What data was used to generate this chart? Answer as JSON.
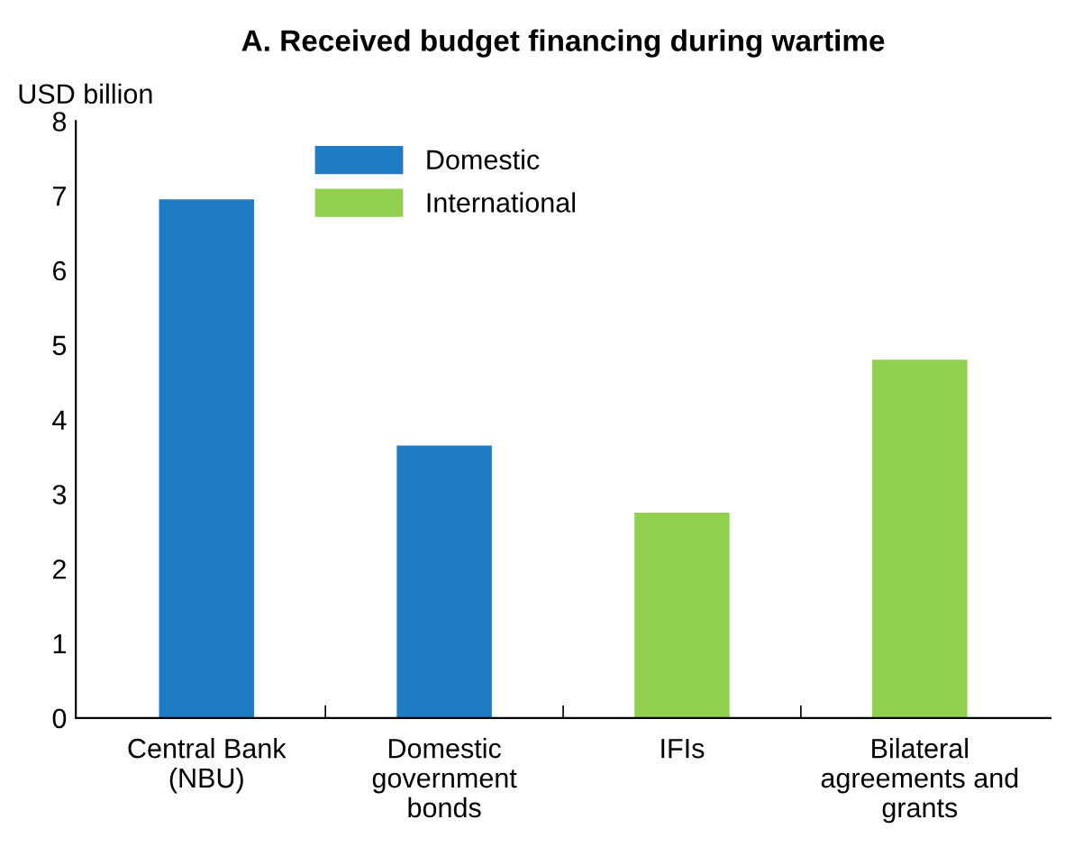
{
  "chart_data": {
    "type": "bar",
    "title": "A. Received budget financing during wartime",
    "ylabel": "USD billion",
    "categories": [
      "Central Bank\n(NBU)",
      "Domestic\ngovernment\nbonds",
      "IFIs",
      "Bilateral\nagreements and\ngrants"
    ],
    "series": [
      {
        "name": "Domestic",
        "color": "#1f7cc4",
        "values": [
          6.95,
          3.65,
          null,
          null
        ]
      },
      {
        "name": "International",
        "color": "#92d050",
        "values": [
          null,
          null,
          2.75,
          4.8
        ]
      }
    ],
    "ylim": [
      0,
      8
    ],
    "yticks": [
      0,
      1,
      2,
      3,
      4,
      5,
      6,
      7,
      8
    ],
    "grid": false,
    "legend": "top left"
  }
}
